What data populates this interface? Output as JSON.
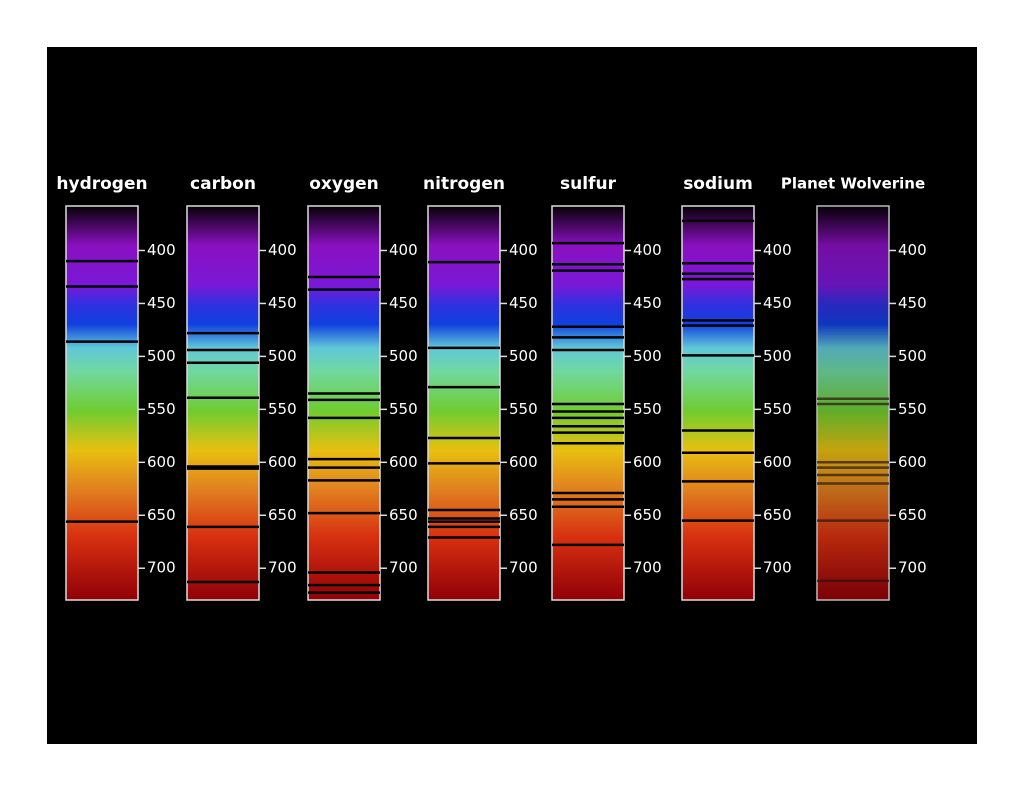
{
  "chart_data": [
    {
      "type": "spectrum",
      "title": "hydrogen",
      "lines": [
        410,
        434,
        486,
        656
      ],
      "ylim": [
        358,
        730
      ],
      "yticks": [
        400,
        450,
        500,
        550,
        600,
        650,
        700
      ]
    },
    {
      "type": "spectrum",
      "title": "carbon",
      "lines": [
        478,
        494,
        506,
        539,
        604,
        606,
        661,
        713
      ],
      "ylim": [
        358,
        730
      ],
      "yticks": [
        400,
        450,
        500,
        550,
        600,
        650,
        700
      ]
    },
    {
      "type": "spectrum",
      "title": "oxygen",
      "lines": [
        425,
        437,
        535,
        541,
        558,
        597,
        605,
        617,
        648,
        704,
        716,
        723
      ],
      "ylim": [
        358,
        730
      ],
      "yticks": [
        400,
        450,
        500,
        550,
        600,
        650,
        700
      ]
    },
    {
      "type": "spectrum",
      "title": "nitrogen",
      "lines": [
        411,
        492,
        529,
        577,
        601,
        645,
        653,
        656,
        661,
        671
      ],
      "ylim": [
        358,
        730
      ],
      "yticks": [
        400,
        450,
        500,
        550,
        600,
        650,
        700
      ]
    },
    {
      "type": "spectrum",
      "title": "sulfur",
      "lines": [
        393,
        413,
        419,
        472,
        482,
        494,
        545,
        552,
        558,
        566,
        572,
        582,
        629,
        635,
        642,
        678
      ],
      "ylim": [
        358,
        730
      ],
      "yticks": [
        400,
        450,
        500,
        550,
        600,
        650,
        700
      ]
    },
    {
      "type": "spectrum",
      "title": "sodium",
      "lines": [
        372,
        412,
        422,
        427,
        466,
        471,
        499,
        570,
        591,
        618,
        655
      ],
      "ylim": [
        358,
        730
      ],
      "yticks": [
        400,
        450,
        500,
        550,
        600,
        650,
        700
      ]
    },
    {
      "type": "spectrum",
      "title": "Planet Wolverine",
      "lines": [
        540,
        545,
        600,
        605,
        612,
        620,
        655,
        712
      ],
      "ylim": [
        358,
        730
      ],
      "yticks": [
        400,
        450,
        500,
        550,
        600,
        650,
        700
      ]
    }
  ]
}
